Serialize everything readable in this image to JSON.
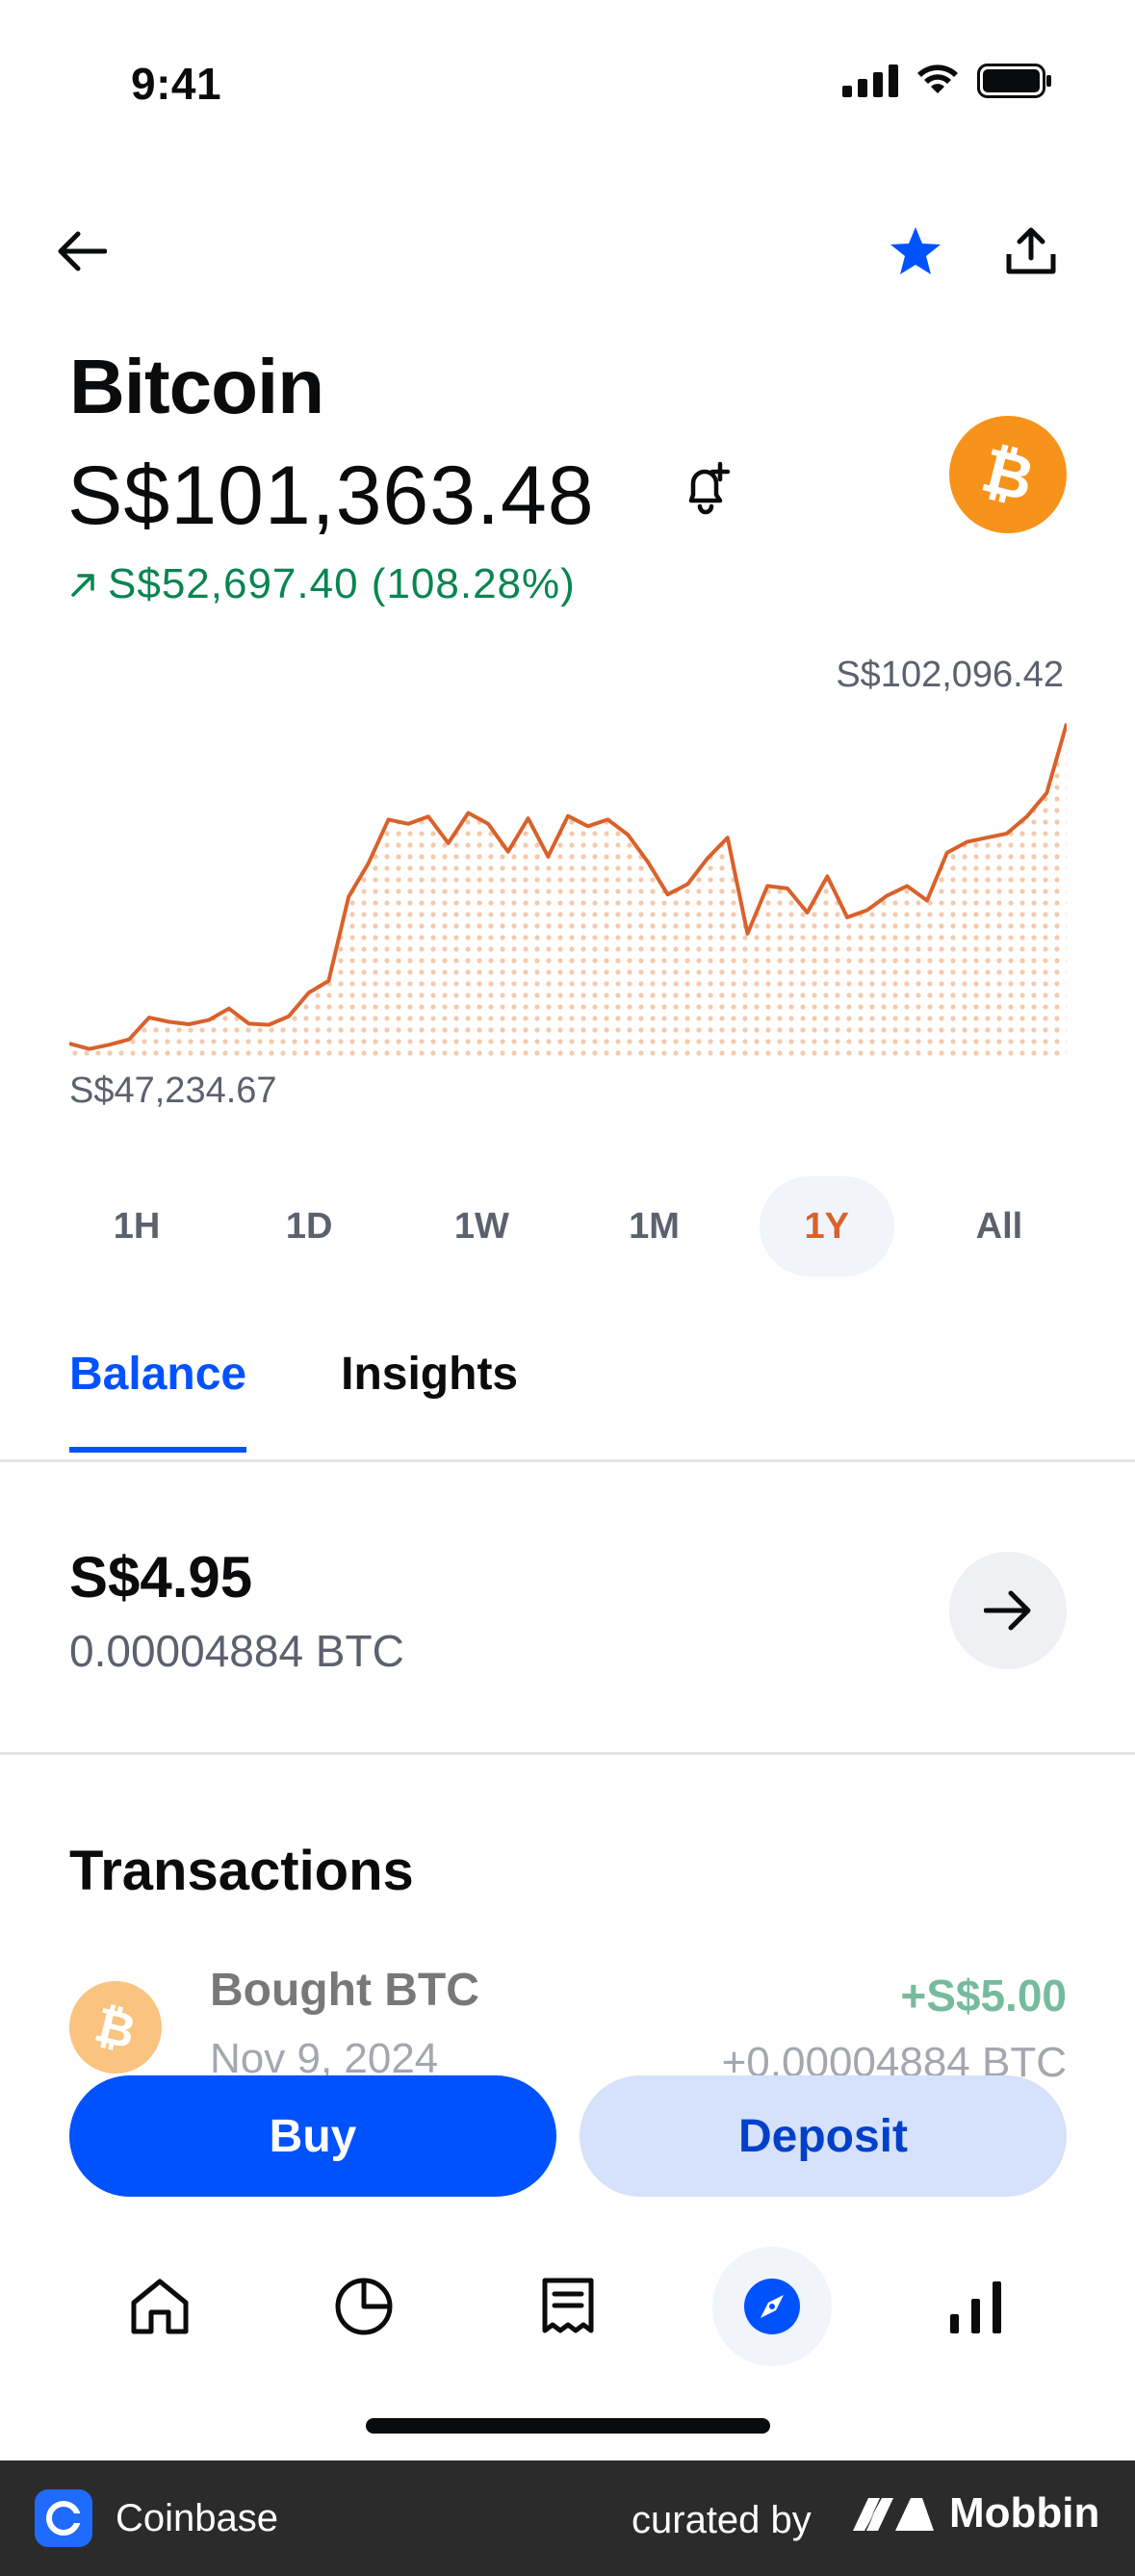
{
  "status_bar": {
    "time": "9:41"
  },
  "asset": {
    "name": "Bitcoin",
    "price": "S$101,363.48",
    "change": "S$52,697.40 (108.28%)"
  },
  "chart_data": {
    "type": "area",
    "high_label": "S$102,096.42",
    "low_label": "S$47,234.67",
    "x": [
      0,
      2,
      4,
      6,
      8,
      10,
      12,
      14,
      16,
      18,
      20,
      22,
      24,
      26,
      28,
      30,
      32,
      34,
      36,
      38,
      40,
      42,
      44,
      46,
      48,
      50,
      52,
      54,
      56,
      58,
      60,
      62,
      64,
      66,
      68,
      70,
      72,
      74,
      76,
      78,
      80,
      82,
      84,
      86,
      88,
      90,
      92,
      94,
      96,
      98,
      100
    ],
    "y": [
      48500,
      47600,
      48300,
      49200,
      52800,
      52100,
      51700,
      52400,
      54300,
      51800,
      51600,
      53000,
      56900,
      58900,
      72800,
      78400,
      85600,
      84900,
      86100,
      81700,
      86700,
      84900,
      80300,
      85800,
      79500,
      86200,
      84500,
      85600,
      83100,
      78600,
      73200,
      74900,
      79200,
      82600,
      66700,
      74600,
      74200,
      70200,
      76200,
      69400,
      70600,
      73000,
      74600,
      72200,
      80100,
      81900,
      82600,
      83300,
      86100,
      90000,
      101500
    ],
    "x_range": [
      0,
      100
    ],
    "y_range": [
      47234.67,
      102096.42
    ],
    "color": "#d9612a",
    "fill": "dotted",
    "grid": false
  },
  "ranges": [
    {
      "label": "1H",
      "active": false
    },
    {
      "label": "1D",
      "active": false
    },
    {
      "label": "1W",
      "active": false
    },
    {
      "label": "1M",
      "active": false
    },
    {
      "label": "1Y",
      "active": true
    },
    {
      "label": "All",
      "active": false
    }
  ],
  "tabs": {
    "balance": "Balance",
    "insights": "Insights"
  },
  "balance": {
    "fiat": "S$4.95",
    "crypto": "0.00004884 BTC"
  },
  "transactions": {
    "title": "Transactions",
    "items": [
      {
        "label": "Bought BTC",
        "date": "Nov 9, 2024",
        "amount": "+S$5.00",
        "crypto": "+0.00004884 BTC"
      }
    ]
  },
  "actions": {
    "buy": "Buy",
    "deposit": "Deposit"
  },
  "bottom_nav": [
    "home-icon",
    "portfolio-icon",
    "transactions-icon",
    "explore-icon",
    "trade-icon"
  ],
  "footer": {
    "app": "Coinbase",
    "curated": "curated by",
    "brand": "Mobbin"
  },
  "colors": {
    "accent": "#0052ff",
    "positive": "#098551",
    "chart": "#d9612a",
    "bitcoin": "#f7931a"
  }
}
